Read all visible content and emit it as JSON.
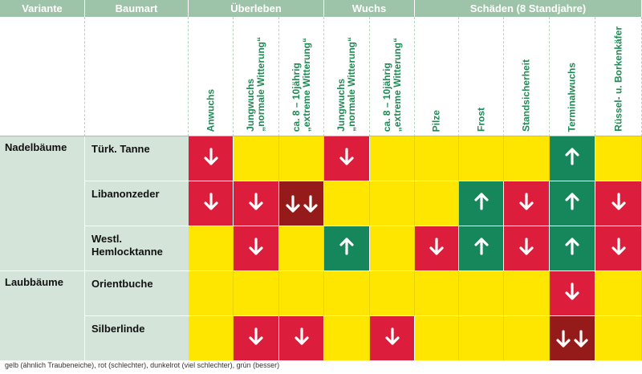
{
  "header": {
    "groups": [
      {
        "label": "Variante"
      },
      {
        "label": "Baumart"
      },
      {
        "label": "Überleben"
      },
      {
        "label": "Wuchs"
      },
      {
        "label": "Schäden (8 Standjahre)"
      }
    ],
    "columns": [
      "Anwuchs",
      "Jungwuchs\n„normale Witterung“",
      "ca. 8 – 10jährig\n„extreme Witterung“",
      "Jungwuchs\n„normale Witterung“",
      "ca. 8 – 10jährig\n„extreme Witterung“",
      "Pilze",
      "Frost",
      "Standsicherheit",
      "Terminalwuchs",
      "Rüssel- u. Borkenkäfer"
    ]
  },
  "variants": [
    {
      "label": "Nadelbäume"
    },
    {
      "label": "Laubbäume"
    }
  ],
  "rows": [
    {
      "species": "Türk. Tanne",
      "cells": [
        "red",
        "yellow",
        "yellow",
        "red",
        "yellow",
        "yellow",
        "yellow",
        "yellow",
        "green",
        "yellow"
      ]
    },
    {
      "species": "Libanonzeder",
      "cells": [
        "red",
        "red",
        "darkred",
        "yellow",
        "yellow",
        "yellow",
        "green",
        "red",
        "green",
        "red"
      ]
    },
    {
      "species": "Westl.\nHemlocktanne",
      "cells": [
        "yellow",
        "red",
        "yellow",
        "green",
        "yellow",
        "red",
        "green",
        "red",
        "green",
        "red"
      ]
    },
    {
      "species": "Orientbuche",
      "cells": [
        "yellow",
        "yellow",
        "yellow",
        "yellow",
        "yellow",
        "yellow",
        "yellow",
        "yellow",
        "red",
        "yellow"
      ]
    },
    {
      "species": "Silberlinde",
      "cells": [
        "yellow",
        "red",
        "red",
        "yellow",
        "red",
        "yellow",
        "yellow",
        "yellow",
        "darkred",
        "yellow"
      ]
    }
  ],
  "caption": "gelb (ähnlich Traubeneiche), rot (schlechter), dunkelrot (viel schlechter), grün (besser)",
  "colors": {
    "yellow": "#ffe600",
    "red": "#dc1e3c",
    "darkred": "#951b1b",
    "green": "#15875a",
    "header_bg": "#9dc3a9",
    "label_bg": "#d4e4d9"
  }
}
